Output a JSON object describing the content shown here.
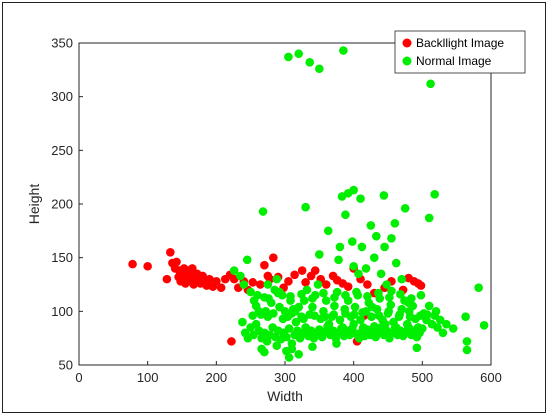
{
  "chart_data": {
    "type": "scatter",
    "xlabel": "Width",
    "ylabel": "Height",
    "xlim": [
      0,
      600
    ],
    "ylim": [
      50,
      350
    ],
    "xticks": [
      "0",
      "100",
      "200",
      "300",
      "400",
      "500",
      "600"
    ],
    "yticks": [
      "50",
      "100",
      "150",
      "200",
      "250",
      "300",
      "350"
    ],
    "grid": false,
    "legend_position": "top-right",
    "series": [
      {
        "name": "Backllight Image",
        "color": "#ff0000",
        "points": [
          [
            78,
            144
          ],
          [
            100,
            142
          ],
          [
            128,
            130
          ],
          [
            133,
            155
          ],
          [
            136,
            145
          ],
          [
            140,
            140
          ],
          [
            142,
            146
          ],
          [
            145,
            132
          ],
          [
            146,
            138
          ],
          [
            148,
            128
          ],
          [
            150,
            135
          ],
          [
            152,
            130
          ],
          [
            153,
            140
          ],
          [
            155,
            126
          ],
          [
            157,
            133
          ],
          [
            158,
            138
          ],
          [
            160,
            128
          ],
          [
            162,
            135
          ],
          [
            163,
            130
          ],
          [
            165,
            140
          ],
          [
            167,
            125
          ],
          [
            168,
            132
          ],
          [
            170,
            128
          ],
          [
            172,
            135
          ],
          [
            175,
            130
          ],
          [
            177,
            126
          ],
          [
            180,
            133
          ],
          [
            183,
            128
          ],
          [
            186,
            124
          ],
          [
            190,
            130
          ],
          [
            195,
            123
          ],
          [
            200,
            128
          ],
          [
            207,
            122
          ],
          [
            213,
            130
          ],
          [
            220,
            134
          ],
          [
            222,
            72
          ],
          [
            226,
            130
          ],
          [
            232,
            122
          ],
          [
            240,
            128
          ],
          [
            246,
            120
          ],
          [
            253,
            127
          ],
          [
            264,
            125
          ],
          [
            270,
            143
          ],
          [
            275,
            133
          ],
          [
            278,
            130
          ],
          [
            283,
            150
          ],
          [
            290,
            132
          ],
          [
            298,
            122
          ],
          [
            305,
            128
          ],
          [
            314,
            134
          ],
          [
            325,
            138
          ],
          [
            330,
            127
          ],
          [
            338,
            133
          ],
          [
            344,
            138
          ],
          [
            352,
            130
          ],
          [
            360,
            125
          ],
          [
            370,
            133
          ],
          [
            376,
            129
          ],
          [
            384,
            126
          ],
          [
            392,
            123
          ],
          [
            396,
            80
          ],
          [
            400,
            140
          ],
          [
            405,
            72
          ],
          [
            410,
            130
          ],
          [
            420,
            125
          ],
          [
            430,
            117
          ],
          [
            445,
            122
          ],
          [
            455,
            128
          ],
          [
            472,
            120
          ],
          [
            480,
            131
          ],
          [
            488,
            128
          ],
          [
            494,
            126
          ],
          [
            498,
            124
          ],
          [
            415,
            96
          ]
        ]
      },
      {
        "name": "Normal Image",
        "color": "#00ee00",
        "points": [
          [
            305,
            337
          ],
          [
            320,
            340
          ],
          [
            336,
            332
          ],
          [
            350,
            326
          ],
          [
            385,
            343
          ],
          [
            512,
            312
          ],
          [
            268,
            193
          ],
          [
            330,
            197
          ],
          [
            363,
            175
          ],
          [
            383,
            207
          ],
          [
            392,
            210
          ],
          [
            400,
            213
          ],
          [
            410,
            205
          ],
          [
            444,
            208
          ],
          [
            460,
            182
          ],
          [
            475,
            196
          ],
          [
            518,
            209
          ],
          [
            510,
            187
          ],
          [
            388,
            190
          ],
          [
            398,
            165
          ],
          [
            412,
            160
          ],
          [
            425,
            180
          ],
          [
            445,
            160
          ],
          [
            430,
            150
          ],
          [
            350,
            153
          ],
          [
            380,
            160
          ],
          [
            400,
            142
          ],
          [
            407,
            135
          ],
          [
            440,
            135
          ],
          [
            448,
            125
          ],
          [
            462,
            145
          ],
          [
            470,
            130
          ],
          [
            433,
            170
          ],
          [
            455,
            168
          ],
          [
            378,
            148
          ],
          [
            418,
            140
          ],
          [
            226,
            138
          ],
          [
            235,
            133
          ],
          [
            245,
            148
          ],
          [
            250,
            118
          ],
          [
            255,
            110
          ],
          [
            258,
            105
          ],
          [
            262,
            100
          ],
          [
            265,
            97
          ],
          [
            270,
            113
          ],
          [
            275,
            95
          ],
          [
            280,
            108
          ],
          [
            285,
            120
          ],
          [
            288,
            130
          ],
          [
            292,
            104
          ],
          [
            296,
            115
          ],
          [
            300,
            100
          ],
          [
            304,
            95
          ],
          [
            308,
            110
          ],
          [
            310,
            98
          ],
          [
            312,
            102
          ],
          [
            316,
            90
          ],
          [
            320,
            104
          ],
          [
            324,
            95
          ],
          [
            328,
            110
          ],
          [
            332,
            120
          ],
          [
            336,
            97
          ],
          [
            340,
            104
          ],
          [
            344,
            115
          ],
          [
            348,
            125
          ],
          [
            352,
            93
          ],
          [
            356,
            100
          ],
          [
            360,
            110
          ],
          [
            364,
            88
          ],
          [
            368,
            95
          ],
          [
            372,
            105
          ],
          [
            376,
            118
          ],
          [
            380,
            92
          ],
          [
            384,
            85
          ],
          [
            388,
            98
          ],
          [
            392,
            110
          ],
          [
            396,
            95
          ],
          [
            400,
            88
          ],
          [
            402,
            104
          ],
          [
            406,
            115
          ],
          [
            410,
            92
          ],
          [
            414,
            85
          ],
          [
            418,
            100
          ],
          [
            422,
            108
          ],
          [
            426,
            95
          ],
          [
            430,
            86
          ],
          [
            434,
            102
          ],
          [
            438,
            112
          ],
          [
            442,
            92
          ],
          [
            446,
            88
          ],
          [
            450,
            98
          ],
          [
            454,
            106
          ],
          [
            458,
            90
          ],
          [
            462,
            85
          ],
          [
            466,
            95
          ],
          [
            470,
            102
          ],
          [
            474,
            110
          ],
          [
            478,
            88
          ],
          [
            482,
            95
          ],
          [
            486,
            105
          ],
          [
            490,
            93
          ],
          [
            494,
            85
          ],
          [
            498,
            115
          ],
          [
            502,
            98
          ],
          [
            506,
            92
          ],
          [
            510,
            105
          ],
          [
            514,
            88
          ],
          [
            518,
            96
          ],
          [
            522,
            85
          ],
          [
            526,
            92
          ],
          [
            530,
            80
          ],
          [
            535,
            88
          ],
          [
            545,
            84
          ],
          [
            563,
            95
          ],
          [
            565,
            72
          ],
          [
            582,
            122
          ],
          [
            590,
            87
          ],
          [
            238,
            90
          ],
          [
            242,
            80
          ],
          [
            246,
            75
          ],
          [
            250,
            85
          ],
          [
            254,
            78
          ],
          [
            258,
            88
          ],
          [
            262,
            82
          ],
          [
            266,
            75
          ],
          [
            270,
            80
          ],
          [
            274,
            72
          ],
          [
            278,
            78
          ],
          [
            282,
            85
          ],
          [
            286,
            76
          ],
          [
            290,
            82
          ],
          [
            294,
            74
          ],
          [
            298,
            80
          ],
          [
            302,
            76
          ],
          [
            306,
            84
          ],
          [
            310,
            70
          ],
          [
            314,
            78
          ],
          [
            318,
            82
          ],
          [
            322,
            75
          ],
          [
            326,
            80
          ],
          [
            330,
            85
          ],
          [
            334,
            77
          ],
          [
            338,
            82
          ],
          [
            342,
            75
          ],
          [
            346,
            79
          ],
          [
            350,
            83
          ],
          [
            354,
            76
          ],
          [
            358,
            81
          ],
          [
            362,
            86
          ],
          [
            366,
            78
          ],
          [
            370,
            82
          ],
          [
            374,
            75
          ],
          [
            378,
            80
          ],
          [
            382,
            84
          ],
          [
            386,
            77
          ],
          [
            390,
            82
          ],
          [
            394,
            78
          ],
          [
            398,
            84
          ],
          [
            404,
            79
          ],
          [
            408,
            75
          ],
          [
            412,
            81
          ],
          [
            416,
            77
          ],
          [
            420,
            83
          ],
          [
            424,
            78
          ],
          [
            428,
            82
          ],
          [
            432,
            76
          ],
          [
            436,
            80
          ],
          [
            440,
            85
          ],
          [
            444,
            78
          ],
          [
            448,
            82
          ],
          [
            452,
            75
          ],
          [
            456,
            80
          ],
          [
            460,
            84
          ],
          [
            464,
            78
          ],
          [
            468,
            82
          ],
          [
            472,
            77
          ],
          [
            476,
            81
          ],
          [
            480,
            85
          ],
          [
            484,
            78
          ],
          [
            488,
            82
          ],
          [
            492,
            76
          ],
          [
            496,
            80
          ],
          [
            500,
            84
          ],
          [
            266,
            65
          ],
          [
            270,
            62
          ],
          [
            302,
            63
          ],
          [
            306,
            57
          ],
          [
            310,
            65
          ],
          [
            492,
            66
          ],
          [
            565,
            64
          ],
          [
            288,
            68
          ],
          [
            320,
            60
          ],
          [
            340,
            67
          ],
          [
            375,
            70
          ],
          [
            253,
            96
          ],
          [
            272,
            100
          ],
          [
            283,
            98
          ],
          [
            297,
            93
          ],
          [
            315,
            100
          ],
          [
            327,
            93
          ],
          [
            343,
            96
          ],
          [
            358,
            95
          ],
          [
            371,
            97
          ],
          [
            387,
            102
          ],
          [
            401,
            97
          ],
          [
            413,
            99
          ],
          [
            427,
            104
          ],
          [
            437,
            96
          ],
          [
            451,
            100
          ],
          [
            467,
            97
          ],
          [
            481,
            100
          ],
          [
            497,
            96
          ],
          [
            507,
            97
          ],
          [
            520,
            100
          ],
          [
            260,
            115
          ],
          [
            276,
            112
          ],
          [
            292,
            118
          ],
          [
            308,
            114
          ],
          [
            324,
            116
          ],
          [
            340,
            112
          ],
          [
            356,
            117
          ],
          [
            372,
            113
          ],
          [
            388,
            115
          ],
          [
            404,
            118
          ],
          [
            420,
            114
          ],
          [
            436,
            117
          ],
          [
            452,
            113
          ],
          [
            468,
            116
          ],
          [
            484,
            112
          ],
          [
            455,
            119
          ],
          [
            480,
            108
          ],
          [
            240,
            125
          ],
          [
            275,
            125
          ],
          [
            290,
            117
          ]
        ]
      }
    ]
  }
}
